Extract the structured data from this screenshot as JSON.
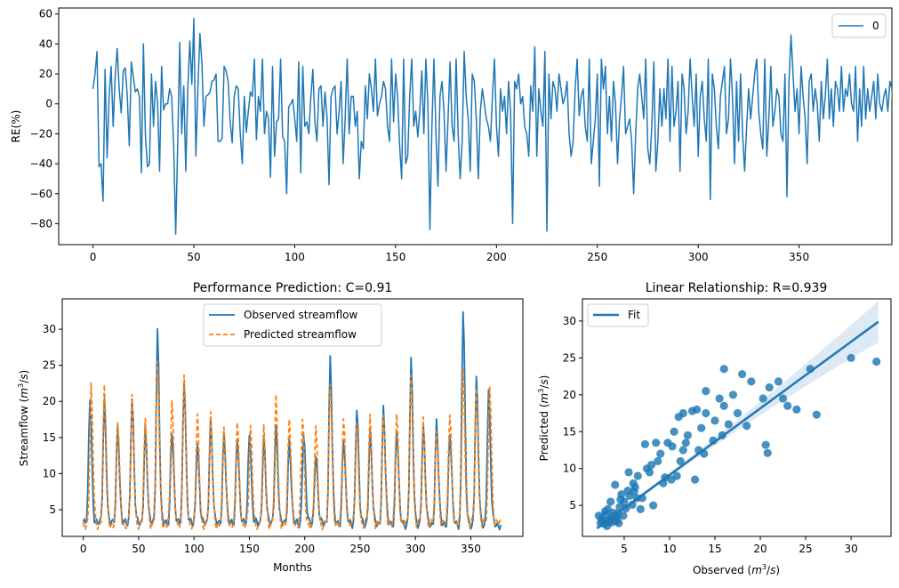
{
  "colors": {
    "blue": "#1f77b4",
    "orange": "#ff7f0e",
    "band": "#c6dbef"
  },
  "chart_data": [
    {
      "id": "re",
      "type": "line",
      "title": "",
      "xlabel": "",
      "ylabel": "RE(%)",
      "xlim": [
        -17,
        396
      ],
      "ylim": [
        -94,
        64
      ],
      "xticks": [
        0,
        50,
        100,
        150,
        200,
        250,
        300,
        350
      ],
      "yticks": [
        -80,
        -60,
        -40,
        -20,
        0,
        20,
        40,
        60
      ],
      "legend_position": "top-right",
      "series": [
        {
          "name": "0",
          "color": "#1f77b4",
          "x_start": 0,
          "x_step": 1,
          "values": [
            10,
            20,
            35,
            -42,
            -40,
            -65,
            23,
            -36,
            5,
            25,
            -15,
            18,
            37,
            10,
            -6,
            22,
            24,
            5,
            -28,
            28,
            18,
            8,
            10,
            5,
            -46,
            40,
            -22,
            -42,
            -40,
            20,
            -15,
            15,
            1,
            -45,
            25,
            -4,
            0,
            0,
            10,
            5,
            -28,
            -87,
            -26,
            41,
            -20,
            12,
            -45,
            10,
            42,
            13,
            57,
            -35,
            10,
            47,
            27,
            -15,
            5,
            6,
            8,
            15,
            16,
            20,
            -25,
            -25,
            -23,
            25,
            22,
            15,
            -12,
            -26,
            5,
            12,
            10,
            -20,
            -40,
            5,
            -19,
            -5,
            8,
            5,
            30,
            -24,
            5,
            -5,
            30,
            -20,
            -5,
            -10,
            -49,
            25,
            -35,
            -12,
            -10,
            30,
            -22,
            -25,
            -60,
            -2,
            0,
            3,
            -10,
            -25,
            28,
            -46,
            25,
            -15,
            -12,
            -20,
            5,
            23,
            -12,
            -25,
            10,
            12,
            -15,
            8,
            -9,
            -54,
            5,
            10,
            12,
            -20,
            -5,
            15,
            -40,
            -10,
            30,
            -20,
            5,
            5,
            -15,
            -5,
            -50,
            -25,
            -30,
            12,
            -10,
            20,
            10,
            -5,
            30,
            -8,
            0,
            5,
            15,
            10,
            -15,
            -25,
            30,
            -12,
            20,
            5,
            -28,
            -50,
            30,
            -40,
            -35,
            5,
            30,
            -15,
            -5,
            -22,
            -5,
            22,
            -20,
            30,
            0,
            -84,
            -15,
            30,
            -20,
            -55,
            5,
            15,
            -5,
            -45,
            -10,
            28,
            -15,
            -25,
            30,
            -20,
            -50,
            -25,
            35,
            5,
            -10,
            -45,
            20,
            15,
            -10,
            -50,
            -5,
            10,
            0,
            -10,
            -15,
            -25,
            5,
            30,
            -15,
            -35,
            10,
            -5,
            5,
            -20,
            15,
            -5,
            -80,
            15,
            10,
            20,
            0,
            5,
            -15,
            -20,
            -35,
            12,
            -5,
            38,
            -35,
            10,
            -5,
            -15,
            35,
            -85,
            20,
            -10,
            15,
            10,
            -5,
            20,
            10,
            0,
            5,
            15,
            -20,
            -35,
            -25,
            10,
            30,
            -8,
            5,
            10,
            -15,
            -25,
            30,
            -40,
            -25,
            -10,
            20,
            -55,
            30,
            10,
            25,
            -20,
            5,
            -25,
            15,
            0,
            -40,
            -10,
            5,
            25,
            -20,
            -15,
            -10,
            -25,
            -60,
            -20,
            10,
            20,
            5,
            -10,
            30,
            -30,
            -40,
            -15,
            28,
            -45,
            -25,
            10,
            -15,
            10,
            -10,
            30,
            -25,
            25,
            -15,
            -5,
            15,
            -45,
            20,
            10,
            -20,
            -5,
            30,
            5,
            -15,
            20,
            -35,
            5,
            15,
            -10,
            -25,
            30,
            -64,
            20,
            10,
            -15,
            -30,
            5,
            15,
            25,
            -20,
            -10,
            30,
            5,
            -40,
            15,
            -25,
            20,
            -20,
            -45,
            -15,
            10,
            -10,
            5,
            20,
            30,
            -5,
            -20,
            -30,
            30,
            -35,
            -10,
            25,
            -15,
            -5,
            10,
            5,
            -20,
            -25,
            20,
            -62,
            15,
            46,
            20,
            -5,
            10,
            -20,
            25,
            5,
            -10,
            -40,
            15,
            20,
            -5,
            10,
            0,
            -25,
            15,
            -10,
            5,
            30,
            -10,
            10,
            -15,
            15,
            10,
            -5,
            25,
            -5,
            10,
            5,
            20,
            0,
            -5,
            25,
            -25,
            10,
            -15,
            25,
            -10,
            10,
            -5,
            5,
            15,
            -10,
            20,
            0,
            -5,
            5,
            10,
            -5,
            15,
            10,
            -17
          ]
        }
      ]
    },
    {
      "id": "perf",
      "type": "line",
      "title": "Performance Prediction: C=0.91",
      "xlabel": "Months",
      "ylabel": "Streamflow ($m^3/s$)",
      "xlim": [
        -19,
        397
      ],
      "ylim": [
        1.3,
        34.2
      ],
      "xticks": [
        0,
        50,
        100,
        150,
        200,
        250,
        300,
        350
      ],
      "yticks": [
        5,
        10,
        15,
        20,
        25,
        30
      ],
      "legend_position": "top-center",
      "series": [
        {
          "name": "Observed streamflow",
          "color": "#1f77b4",
          "style": "solid",
          "peaks": [
            [
              6,
              20.8
            ],
            [
              19,
              20.2
            ],
            [
              31,
              16.8
            ],
            [
              44,
              20.8
            ],
            [
              56,
              16.5
            ],
            [
              67,
              30
            ],
            [
              80,
              16.2
            ],
            [
              91,
              23.2
            ],
            [
              103,
              14.6
            ],
            [
              115,
              17.5
            ],
            [
              127,
              15.9
            ],
            [
              139,
              15.3
            ],
            [
              150,
              16
            ],
            [
              163,
              15
            ],
            [
              174,
              16.8
            ],
            [
              186,
              14.8
            ],
            [
              199,
              15.8
            ],
            [
              210,
              13
            ],
            [
              223,
              26.2
            ],
            [
              235,
              15.1
            ],
            [
              247,
              19.2
            ],
            [
              259,
              15.8
            ],
            [
              271,
              19.2
            ],
            [
              283,
              16.2
            ],
            [
              296,
              25.6
            ],
            [
              307,
              16.5
            ],
            [
              319,
              17.2
            ],
            [
              331,
              15.6
            ],
            [
              343,
              32.7
            ],
            [
              355,
              23.1
            ],
            [
              366,
              21.5
            ]
          ]
        },
        {
          "name": "Predicted streamflow",
          "color": "#ff7f0e",
          "style": "dashed",
          "peaks": [
            [
              7,
              21.8
            ],
            [
              19,
              21.8
            ],
            [
              31,
              17.2
            ],
            [
              44,
              20.2
            ],
            [
              56,
              17.2
            ],
            [
              67,
              25
            ],
            [
              80,
              20
            ],
            [
              91,
              23.5
            ],
            [
              103,
              17.5
            ],
            [
              115,
              18
            ],
            [
              127,
              16.5
            ],
            [
              139,
              17
            ],
            [
              151,
              16
            ],
            [
              163,
              16.2
            ],
            [
              174,
              20.3
            ],
            [
              186,
              17.5
            ],
            [
              198,
              17.5
            ],
            [
              210,
              16
            ],
            [
              223,
              22.5
            ],
            [
              235,
              17.7
            ],
            [
              247,
              16.5
            ],
            [
              259,
              17.8
            ],
            [
              271,
              18.3
            ],
            [
              283,
              18.5
            ],
            [
              296,
              23.5
            ],
            [
              307,
              17.5
            ],
            [
              319,
              16.2
            ],
            [
              331,
              18.5
            ],
            [
              343,
              24.5
            ],
            [
              355,
              21.6
            ],
            [
              367,
              22.5
            ]
          ]
        }
      ]
    },
    {
      "id": "scatter",
      "type": "scatter",
      "title": "Linear Relationship: R=0.939",
      "xlabel": "Observed ($m^3/s$)",
      "ylabel": "Predicted ($m^3/s$)",
      "xlim": [
        0.4,
        34.4
      ],
      "ylim": [
        0.8,
        33
      ],
      "xticks": [
        5,
        10,
        15,
        20,
        25,
        30
      ],
      "yticks": [
        5,
        10,
        15,
        20,
        25,
        30
      ],
      "legend_position": "top-left",
      "fit": {
        "name": "Fit",
        "slope": 0.903,
        "intercept": 0.1,
        "x_range": [
          2,
          33
        ]
      },
      "points": [
        [
          16,
          23.5
        ],
        [
          18,
          22.8
        ],
        [
          14,
          20.5
        ],
        [
          15.5,
          19.5
        ],
        [
          17,
          20
        ],
        [
          19,
          21.8
        ],
        [
          21,
          21
        ],
        [
          22,
          21.8
        ],
        [
          25.5,
          23.5
        ],
        [
          26.2,
          17.3
        ],
        [
          30,
          25
        ],
        [
          32.8,
          24.5
        ],
        [
          22.5,
          19.5
        ],
        [
          23,
          18.5
        ],
        [
          24,
          18
        ],
        [
          20.3,
          19.5
        ],
        [
          20.6,
          13.2
        ],
        [
          20.8,
          12.1
        ],
        [
          18.5,
          15.8
        ],
        [
          17.5,
          17.5
        ],
        [
          16.5,
          16
        ],
        [
          16,
          18.5
        ],
        [
          15,
          16.5
        ],
        [
          15.8,
          14.5
        ],
        [
          14,
          17.5
        ],
        [
          13.5,
          15.5
        ],
        [
          13,
          18
        ],
        [
          12.5,
          17.8
        ],
        [
          11.5,
          17.5
        ],
        [
          11,
          17
        ],
        [
          12,
          14.5
        ],
        [
          11.8,
          13.5
        ],
        [
          11.5,
          12.5
        ],
        [
          10.5,
          15
        ],
        [
          10.3,
          13
        ],
        [
          9.8,
          13.5
        ],
        [
          8.5,
          13.5
        ],
        [
          9,
          12
        ],
        [
          8,
          10.5
        ],
        [
          7.5,
          10
        ],
        [
          6.5,
          9
        ],
        [
          6,
          8
        ],
        [
          5.5,
          9.5
        ],
        [
          7.3,
          13.3
        ],
        [
          12.8,
          8.5
        ],
        [
          10.2,
          8.5
        ],
        [
          9.3,
          8
        ],
        [
          8.2,
          5
        ],
        [
          7,
          6
        ],
        [
          6.2,
          7.5
        ],
        [
          6.8,
          4.5
        ],
        [
          4.7,
          6.5
        ],
        [
          9.5,
          8.8
        ],
        [
          10.8,
          9
        ],
        [
          11.2,
          11
        ],
        [
          13.2,
          12.5
        ],
        [
          14.8,
          13.8
        ],
        [
          13.8,
          12
        ],
        [
          7.8,
          9.5
        ],
        [
          8.7,
          11
        ],
        [
          4,
          7.8
        ],
        [
          3.5,
          5.5
        ],
        [
          3.2,
          4.5
        ],
        [
          2.5,
          3.2
        ],
        [
          2.8,
          2.5
        ],
        [
          3,
          3.8
        ],
        [
          3.6,
          2.7
        ],
        [
          4.2,
          3.2
        ],
        [
          4.5,
          4.8
        ],
        [
          5,
          5.5
        ],
        [
          5.6,
          6.3
        ],
        [
          4.4,
          2.6
        ],
        [
          3.8,
          4
        ],
        [
          2.2,
          3.6
        ],
        [
          2.4,
          2.6
        ],
        [
          3.4,
          3.1
        ],
        [
          4.9,
          3.6
        ],
        [
          5.2,
          4.6
        ],
        [
          6.1,
          6.9
        ],
        [
          5.9,
          5.1
        ],
        [
          4.6,
          5.8
        ],
        [
          2.9,
          4.2
        ],
        [
          3.1,
          2.2
        ],
        [
          2.6,
          2.9
        ],
        [
          4.1,
          2.9
        ],
        [
          3.7,
          3.5
        ],
        [
          5.4,
          7
        ],
        [
          6.4,
          6
        ],
        [
          4.3,
          3.9
        ],
        [
          3.3,
          2.8
        ]
      ]
    }
  ]
}
